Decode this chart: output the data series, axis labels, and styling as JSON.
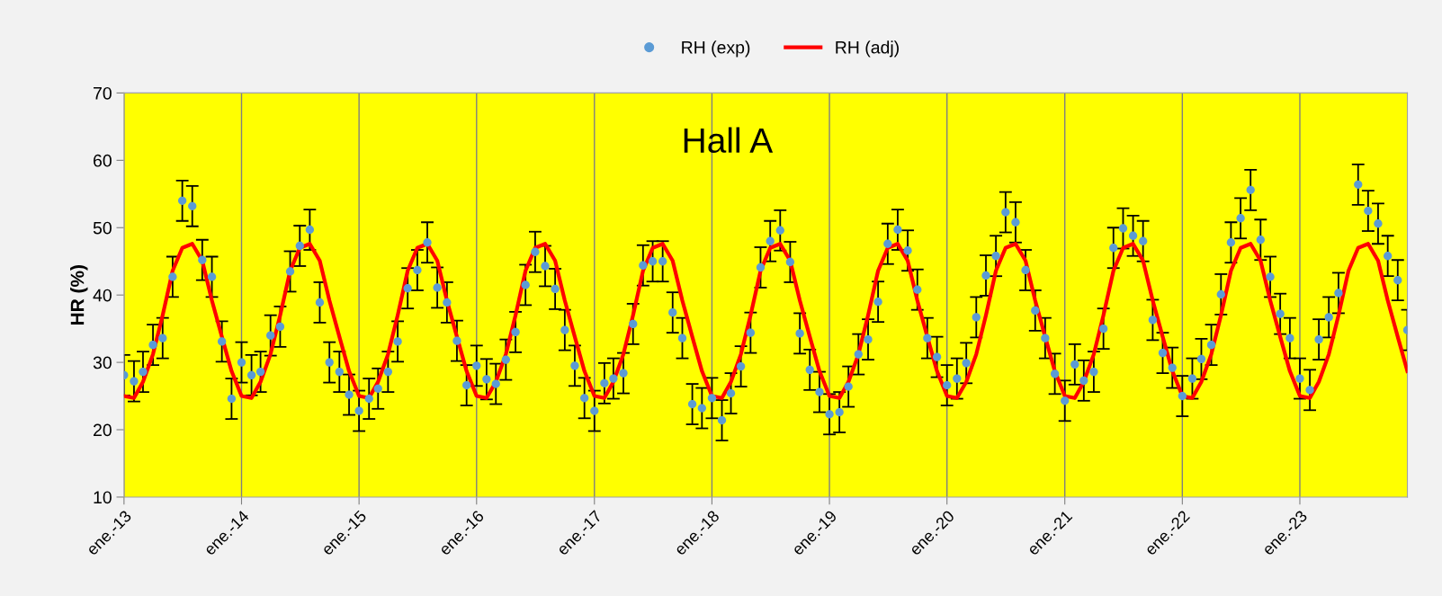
{
  "chart_data": {
    "type": "scatter",
    "title": "Hall A",
    "ylabel": "HR (%)",
    "x": [
      "2013-01",
      "2013-02",
      "2013-03",
      "2013-04",
      "2013-05",
      "2013-06",
      "2013-07",
      "2013-08",
      "2013-09",
      "2013-10",
      "2013-11",
      "2013-12",
      "2014-01",
      "2014-02",
      "2014-03",
      "2014-04",
      "2014-05",
      "2014-06",
      "2014-07",
      "2014-08",
      "2014-09",
      "2014-10",
      "2014-11",
      "2014-12",
      "2015-01",
      "2015-02",
      "2015-03",
      "2015-04",
      "2015-05",
      "2015-06",
      "2015-07",
      "2015-08",
      "2015-09",
      "2015-10",
      "2015-11",
      "2015-12",
      "2016-01",
      "2016-02",
      "2016-03",
      "2016-04",
      "2016-05",
      "2016-06",
      "2016-07",
      "2016-08",
      "2016-09",
      "2016-10",
      "2016-11",
      "2016-12",
      "2017-01",
      "2017-02",
      "2017-03",
      "2017-04",
      "2017-05",
      "2017-06",
      "2017-07",
      "2017-08",
      "2017-09",
      "2017-10",
      "2017-11",
      "2017-12",
      "2018-01",
      "2018-02",
      "2018-03",
      "2018-04",
      "2018-05",
      "2018-06",
      "2018-07",
      "2018-08",
      "2018-09",
      "2018-10",
      "2018-11",
      "2018-12",
      "2019-01",
      "2019-02",
      "2019-03",
      "2019-04",
      "2019-05",
      "2019-06",
      "2019-07",
      "2019-08",
      "2019-09",
      "2019-10",
      "2019-11",
      "2019-12",
      "2020-01",
      "2020-02",
      "2020-03",
      "2020-04",
      "2020-05",
      "2020-06",
      "2020-07",
      "2020-08",
      "2020-09",
      "2020-10",
      "2020-11",
      "2020-12",
      "2021-01",
      "2021-02",
      "2021-03",
      "2021-04",
      "2021-05",
      "2021-06",
      "2021-07",
      "2021-08",
      "2021-09",
      "2021-10",
      "2021-11",
      "2021-12",
      "2022-01",
      "2022-02",
      "2022-03",
      "2022-04",
      "2022-05",
      "2022-06",
      "2022-07",
      "2022-08",
      "2022-09",
      "2022-10",
      "2022-11",
      "2022-12",
      "2023-01",
      "2023-02",
      "2023-03",
      "2023-04",
      "2023-05",
      "2023-06",
      "2023-07",
      "2023-08",
      "2023-09",
      "2023-10",
      "2023-11",
      "2023-12"
    ],
    "series": [
      {
        "name": "RH (exp)",
        "color": "#5b9bd5",
        "marker": "circle",
        "values": [
          28.1,
          27.2,
          28.6,
          32.6,
          33.6,
          42.7,
          54.0,
          53.2,
          45.2,
          42.7,
          33.1,
          24.6,
          30.0,
          28.1,
          28.6,
          34.0,
          35.3,
          43.5,
          47.3,
          49.7,
          38.9,
          30.0,
          28.6,
          25.2,
          22.8,
          24.6,
          26.1,
          28.6,
          33.1,
          41.0,
          43.7,
          47.8,
          41.1,
          38.9,
          33.2,
          26.6,
          29.5,
          27.5,
          26.8,
          30.4,
          34.5,
          41.5,
          46.4,
          44.3,
          40.9,
          34.8,
          29.5,
          24.7,
          22.8,
          26.9,
          27.6,
          28.4,
          35.7,
          44.4,
          45.0,
          45.0,
          37.4,
          33.6,
          23.8,
          23.2,
          24.7,
          21.4,
          25.4,
          29.4,
          34.4,
          44.1,
          48.0,
          49.6,
          44.9,
          34.3,
          28.9,
          25.6,
          22.3,
          22.6,
          26.4,
          31.2,
          33.4,
          39.0,
          47.6,
          49.7,
          46.6,
          40.8,
          33.6,
          30.8,
          26.6,
          27.6,
          29.9,
          36.7,
          42.9,
          45.8,
          52.3,
          50.8,
          43.7,
          37.7,
          33.6,
          28.3,
          24.3,
          29.7,
          27.3,
          28.6,
          35.0,
          47.0,
          49.9,
          48.8,
          48.0,
          36.3,
          31.4,
          29.2,
          25.0,
          27.6,
          30.5,
          32.6,
          40.1,
          47.8,
          51.4,
          55.6,
          48.2,
          42.7,
          37.2,
          33.6,
          27.6,
          25.9,
          33.4,
          36.7,
          40.3,
          null,
          56.4,
          52.5,
          50.6,
          45.8,
          42.2,
          34.8
        ],
        "errors": [
          3,
          3,
          3,
          3,
          3,
          3,
          3,
          3,
          3,
          3,
          3,
          3,
          3,
          3,
          3,
          3,
          3,
          3,
          3,
          3,
          3,
          3,
          3,
          3,
          3,
          3,
          3,
          3,
          3,
          3,
          3,
          3,
          3,
          3,
          3,
          3,
          3,
          3,
          3,
          3,
          3,
          3,
          3,
          3,
          3,
          3,
          3,
          3,
          3,
          3,
          3,
          3,
          3,
          3,
          3,
          3,
          3,
          3,
          3,
          3,
          3,
          3,
          3,
          3,
          3,
          3,
          3,
          3,
          3,
          3,
          3,
          3,
          3,
          3,
          3,
          3,
          3,
          3,
          3,
          3,
          3,
          3,
          3,
          3,
          3,
          3,
          3,
          3,
          3,
          3,
          3,
          3,
          3,
          3,
          3,
          3,
          3,
          3,
          3,
          3,
          3,
          3,
          3,
          3,
          3,
          3,
          3,
          3,
          3,
          3,
          3,
          3,
          3,
          3,
          3,
          3,
          3,
          3,
          3,
          3,
          3,
          3,
          3,
          3,
          3,
          null,
          3,
          3,
          3,
          3,
          3,
          3
        ]
      },
      {
        "name": "RH (adj)",
        "type": "line",
        "color": "#ff0000",
        "marker": "none",
        "line_style": "solid",
        "values": [
          25.0,
          24.7,
          27.1,
          31.2,
          37.0,
          43.6,
          47.0,
          47.6,
          45.1,
          39.2,
          33.8,
          28.7,
          25.0,
          24.7,
          27.1,
          31.2,
          37.0,
          43.6,
          47.0,
          47.6,
          45.1,
          39.2,
          33.8,
          28.7,
          25.0,
          24.7,
          27.1,
          31.2,
          37.0,
          43.6,
          47.0,
          47.6,
          45.1,
          39.2,
          33.8,
          28.7,
          25.0,
          24.7,
          27.1,
          31.2,
          37.0,
          43.6,
          47.0,
          47.6,
          45.1,
          39.2,
          33.8,
          28.7,
          25.0,
          24.7,
          27.1,
          31.2,
          37.0,
          43.6,
          47.0,
          47.6,
          45.1,
          39.2,
          33.8,
          28.7,
          25.0,
          24.7,
          27.1,
          31.2,
          37.0,
          43.6,
          47.0,
          47.6,
          45.1,
          39.2,
          33.8,
          28.7,
          25.0,
          24.7,
          27.1,
          31.2,
          37.0,
          43.6,
          47.0,
          47.6,
          45.1,
          39.2,
          33.8,
          28.7,
          25.0,
          24.7,
          27.1,
          31.2,
          37.0,
          43.6,
          47.0,
          47.6,
          45.1,
          39.2,
          33.8,
          28.7,
          25.0,
          24.7,
          27.1,
          31.2,
          37.0,
          43.6,
          47.0,
          47.6,
          45.1,
          39.2,
          33.8,
          28.7,
          25.0,
          24.7,
          27.1,
          31.2,
          37.0,
          43.6,
          47.0,
          47.6,
          45.1,
          39.2,
          33.8,
          28.7,
          25.0,
          24.7,
          27.1,
          31.2,
          37.0,
          43.6,
          47.0,
          47.6,
          45.1,
          39.2,
          33.8,
          28.7
        ]
      }
    ],
    "xlim": [
      "2013-01",
      "2023-12"
    ],
    "xticks": [
      {
        "value": "2013-01",
        "label": "ene.-13"
      },
      {
        "value": "2014-01",
        "label": "ene.-14"
      },
      {
        "value": "2015-01",
        "label": "ene.-15"
      },
      {
        "value": "2016-01",
        "label": "ene.-16"
      },
      {
        "value": "2017-01",
        "label": "ene.-17"
      },
      {
        "value": "2018-01",
        "label": "ene.-18"
      },
      {
        "value": "2019-01",
        "label": "ene.-19"
      },
      {
        "value": "2020-01",
        "label": "ene.-20"
      },
      {
        "value": "2021-01",
        "label": "ene.-21"
      },
      {
        "value": "2022-01",
        "label": "ene.-22"
      },
      {
        "value": "2023-01",
        "label": "ene.-23"
      }
    ],
    "ylim": [
      10,
      70
    ],
    "yticks": [
      10,
      20,
      30,
      40,
      50,
      60,
      70
    ],
    "grid": "x",
    "legend": "top"
  }
}
